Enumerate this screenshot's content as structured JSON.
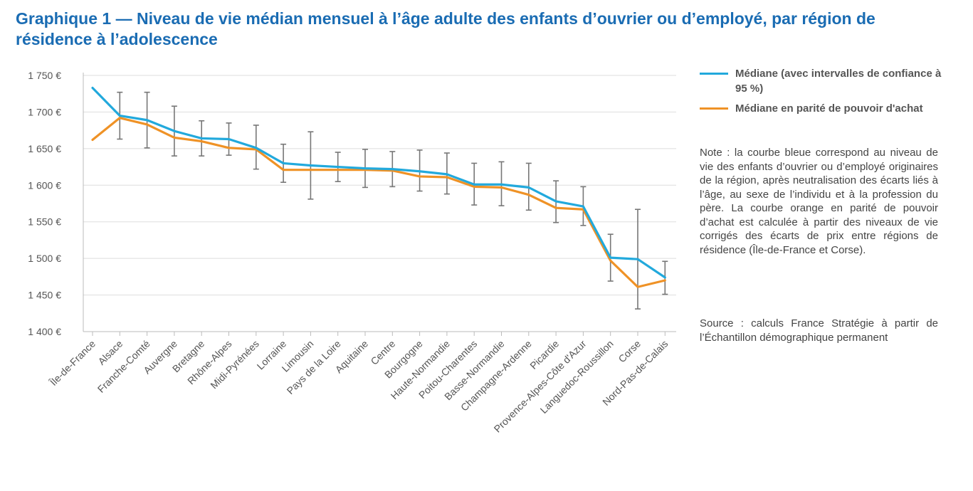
{
  "title": "Graphique 1 — Niveau de vie médian mensuel à l’âge adulte des enfants d’ouvrier ou d’employé, par région de résidence à l’adolescence",
  "legend": {
    "median": "Médiane (avec intervalles de confiance à 95 %)",
    "ppp": "Médiane en parité de pouvoir d'achat"
  },
  "note": "Note : la courbe bleue correspond au niveau de vie des enfants d’ouvrier ou d’employé originaires de la région, après neutralisation des écarts liés à l’âge, au sexe de l’individu et à la profession du père. La courbe orange en parité de pouvoir d’achat est calculée à partir des niveaux de vie corrigés des écarts de prix entre régions de résidence (Île-de-France et Corse).",
  "source": "Source : calculs France Stratégie à partir de l’Échantillon démographique permanent",
  "colors": {
    "median": "#22a9dc",
    "ppp": "#ef9226",
    "title": "#1a6cb3",
    "errorbar": "#777777",
    "grid": "#dddddd"
  },
  "chart_data": {
    "type": "line",
    "title": "Graphique 1 — Niveau de vie médian mensuel à l’âge adulte des enfants d’ouvrier ou d’employé, par région de résidence à l’adolescence",
    "xlabel": "",
    "ylabel": "",
    "ylim": [
      1400,
      1750
    ],
    "yticks": [
      1400,
      1450,
      1500,
      1550,
      1600,
      1650,
      1700,
      1750
    ],
    "ytick_labels": [
      "1 400 €",
      "1 450 €",
      "1 500 €",
      "1 550 €",
      "1 600 €",
      "1 650 €",
      "1 700 €",
      "1 750 €"
    ],
    "grid": true,
    "legend_position": "right",
    "categories": [
      "Île-de-France",
      "Alsace",
      "Franche-Comté",
      "Auvergne",
      "Bretagne",
      "Rhône-Alpes",
      "Midi-Pyrénées",
      "Lorraine",
      "Limousin",
      "Pays de la Loire",
      "Aquitaine",
      "Centre",
      "Bourgogne",
      "Haute-Normandie",
      "Poitou-Charentes",
      "Basse-Normandie",
      "Champagne-Ardenne",
      "Picardie",
      "Provence-Alpes-Côte d'Azur",
      "Languedoc-Roussillon",
      "Corse",
      "Nord-Pas-de-Calais"
    ],
    "series": [
      {
        "name": "Médiane (avec intervalles de confiance à 95 %)",
        "values": [
          1733,
          1695,
          1689,
          1674,
          1664,
          1663,
          1651,
          1630,
          1627,
          1625,
          1623,
          1622,
          1619,
          1615,
          1601,
          1601,
          1597,
          1578,
          1571,
          1501,
          1499,
          1474
        ],
        "ci_low": [
          null,
          1663,
          1651,
          1640,
          1640,
          1641,
          1622,
          1604,
          1581,
          1605,
          1597,
          1598,
          1592,
          1588,
          1573,
          1572,
          1566,
          1549,
          1545,
          1469,
          1431,
          1451
        ],
        "ci_high": [
          null,
          1727,
          1727,
          1708,
          1688,
          1685,
          1682,
          1656,
          1673,
          1645,
          1649,
          1646,
          1648,
          1644,
          1630,
          1632,
          1630,
          1606,
          1598,
          1533,
          1567,
          1496
        ]
      },
      {
        "name": "Médiane en parité de pouvoir d'achat",
        "values": [
          1662,
          1692,
          1683,
          1665,
          1660,
          1651,
          1649,
          1621,
          1621,
          1621,
          1621,
          1620,
          1612,
          1611,
          1598,
          1597,
          1587,
          1569,
          1567,
          1497,
          1461,
          1470
        ]
      }
    ]
  }
}
